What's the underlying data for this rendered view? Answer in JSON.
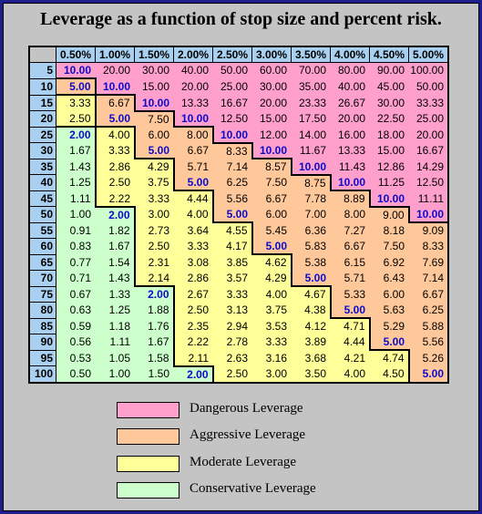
{
  "title": "Leverage as a function of stop size and percent risk.",
  "columns": [
    "0.50%",
    "1.00%",
    "1.50%",
    "2.00%",
    "2.50%",
    "3.00%",
    "3.50%",
    "4.00%",
    "4.50%",
    "5.00%"
  ],
  "rows": [
    {
      "stop": "5",
      "values": [
        "10.00",
        "20.00",
        "30.00",
        "40.00",
        "50.00",
        "60.00",
        "70.00",
        "80.00",
        "90.00",
        "100.00"
      ],
      "zones": [
        "d",
        "d",
        "d",
        "d",
        "d",
        "d",
        "d",
        "d",
        "d",
        "d"
      ]
    },
    {
      "stop": "10",
      "values": [
        "5.00",
        "10.00",
        "15.00",
        "20.00",
        "25.00",
        "30.00",
        "35.00",
        "40.00",
        "45.00",
        "50.00"
      ],
      "zones": [
        "a",
        "d",
        "d",
        "d",
        "d",
        "d",
        "d",
        "d",
        "d",
        "d"
      ]
    },
    {
      "stop": "15",
      "values": [
        "3.33",
        "6.67",
        "10.00",
        "13.33",
        "16.67",
        "20.00",
        "23.33",
        "26.67",
        "30.00",
        "33.33"
      ],
      "zones": [
        "m",
        "a",
        "d",
        "d",
        "d",
        "d",
        "d",
        "d",
        "d",
        "d"
      ]
    },
    {
      "stop": "20",
      "values": [
        "2.50",
        "5.00",
        "7.50",
        "10.00",
        "12.50",
        "15.00",
        "17.50",
        "20.00",
        "22.50",
        "25.00"
      ],
      "zones": [
        "m",
        "a",
        "a",
        "d",
        "d",
        "d",
        "d",
        "d",
        "d",
        "d"
      ]
    },
    {
      "stop": "25",
      "values": [
        "2.00",
        "4.00",
        "6.00",
        "8.00",
        "10.00",
        "12.00",
        "14.00",
        "16.00",
        "18.00",
        "20.00"
      ],
      "zones": [
        "c",
        "m",
        "a",
        "a",
        "d",
        "d",
        "d",
        "d",
        "d",
        "d"
      ]
    },
    {
      "stop": "30",
      "values": [
        "1.67",
        "3.33",
        "5.00",
        "6.67",
        "8.33",
        "10.00",
        "11.67",
        "13.33",
        "15.00",
        "16.67"
      ],
      "zones": [
        "c",
        "m",
        "a",
        "a",
        "a",
        "d",
        "d",
        "d",
        "d",
        "d"
      ]
    },
    {
      "stop": "35",
      "values": [
        "1.43",
        "2.86",
        "4.29",
        "5.71",
        "7.14",
        "8.57",
        "10.00",
        "11.43",
        "12.86",
        "14.29"
      ],
      "zones": [
        "c",
        "m",
        "m",
        "a",
        "a",
        "a",
        "d",
        "d",
        "d",
        "d"
      ]
    },
    {
      "stop": "40",
      "values": [
        "1.25",
        "2.50",
        "3.75",
        "5.00",
        "6.25",
        "7.50",
        "8.75",
        "10.00",
        "11.25",
        "12.50"
      ],
      "zones": [
        "c",
        "m",
        "m",
        "a",
        "a",
        "a",
        "a",
        "d",
        "d",
        "d"
      ]
    },
    {
      "stop": "45",
      "values": [
        "1.11",
        "2.22",
        "3.33",
        "4.44",
        "5.56",
        "6.67",
        "7.78",
        "8.89",
        "10.00",
        "11.11"
      ],
      "zones": [
        "c",
        "m",
        "m",
        "m",
        "a",
        "a",
        "a",
        "a",
        "d",
        "d"
      ]
    },
    {
      "stop": "50",
      "values": [
        "1.00",
        "2.00",
        "3.00",
        "4.00",
        "5.00",
        "6.00",
        "7.00",
        "8.00",
        "9.00",
        "10.00"
      ],
      "zones": [
        "c",
        "c",
        "m",
        "m",
        "a",
        "a",
        "a",
        "a",
        "a",
        "d"
      ]
    },
    {
      "stop": "55",
      "values": [
        "0.91",
        "1.82",
        "2.73",
        "3.64",
        "4.55",
        "5.45",
        "6.36",
        "7.27",
        "8.18",
        "9.09"
      ],
      "zones": [
        "c",
        "c",
        "m",
        "m",
        "m",
        "a",
        "a",
        "a",
        "a",
        "a"
      ]
    },
    {
      "stop": "60",
      "values": [
        "0.83",
        "1.67",
        "2.50",
        "3.33",
        "4.17",
        "5.00",
        "5.83",
        "6.67",
        "7.50",
        "8.33"
      ],
      "zones": [
        "c",
        "c",
        "m",
        "m",
        "m",
        "a",
        "a",
        "a",
        "a",
        "a"
      ]
    },
    {
      "stop": "65",
      "values": [
        "0.77",
        "1.54",
        "2.31",
        "3.08",
        "3.85",
        "4.62",
        "5.38",
        "6.15",
        "6.92",
        "7.69"
      ],
      "zones": [
        "c",
        "c",
        "m",
        "m",
        "m",
        "m",
        "a",
        "a",
        "a",
        "a"
      ]
    },
    {
      "stop": "70",
      "values": [
        "0.71",
        "1.43",
        "2.14",
        "2.86",
        "3.57",
        "4.29",
        "5.00",
        "5.71",
        "6.43",
        "7.14"
      ],
      "zones": [
        "c",
        "c",
        "m",
        "m",
        "m",
        "m",
        "a",
        "a",
        "a",
        "a"
      ]
    },
    {
      "stop": "75",
      "values": [
        "0.67",
        "1.33",
        "2.00",
        "2.67",
        "3.33",
        "4.00",
        "4.67",
        "5.33",
        "6.00",
        "6.67"
      ],
      "zones": [
        "c",
        "c",
        "c",
        "m",
        "m",
        "m",
        "m",
        "a",
        "a",
        "a"
      ]
    },
    {
      "stop": "80",
      "values": [
        "0.63",
        "1.25",
        "1.88",
        "2.50",
        "3.13",
        "3.75",
        "4.38",
        "5.00",
        "5.63",
        "6.25"
      ],
      "zones": [
        "c",
        "c",
        "c",
        "m",
        "m",
        "m",
        "m",
        "a",
        "a",
        "a"
      ]
    },
    {
      "stop": "85",
      "values": [
        "0.59",
        "1.18",
        "1.76",
        "2.35",
        "2.94",
        "3.53",
        "4.12",
        "4.71",
        "5.29",
        "5.88"
      ],
      "zones": [
        "c",
        "c",
        "c",
        "m",
        "m",
        "m",
        "m",
        "m",
        "a",
        "a"
      ]
    },
    {
      "stop": "90",
      "values": [
        "0.56",
        "1.11",
        "1.67",
        "2.22",
        "2.78",
        "3.33",
        "3.89",
        "4.44",
        "5.00",
        "5.56"
      ],
      "zones": [
        "c",
        "c",
        "c",
        "m",
        "m",
        "m",
        "m",
        "m",
        "a",
        "a"
      ]
    },
    {
      "stop": "95",
      "values": [
        "0.53",
        "1.05",
        "1.58",
        "2.11",
        "2.63",
        "3.16",
        "3.68",
        "4.21",
        "4.74",
        "5.26"
      ],
      "zones": [
        "c",
        "c",
        "c",
        "m",
        "m",
        "m",
        "m",
        "m",
        "m",
        "a"
      ]
    },
    {
      "stop": "100",
      "values": [
        "0.50",
        "1.00",
        "1.50",
        "2.00",
        "2.50",
        "3.00",
        "3.50",
        "4.00",
        "4.50",
        "5.00"
      ],
      "zones": [
        "c",
        "c",
        "c",
        "c",
        "m",
        "m",
        "m",
        "m",
        "m",
        "a"
      ]
    }
  ],
  "emphasis_values": [
    "10.00",
    "5.00",
    "2.00"
  ],
  "legend": [
    {
      "label": "Dangerous Leverage",
      "color": "#ffa0cc"
    },
    {
      "label": "Aggressive Leverage",
      "color": "#ffc89a"
    },
    {
      "label": "Moderate Leverage",
      "color": "#ffff9a"
    },
    {
      "label": "Conservative Leverage",
      "color": "#ccffcc"
    }
  ],
  "colors": {
    "frame_border": "#1e1e8c",
    "background": "#c4c4c4",
    "header": "#a9d0f0",
    "emphasis_text": "#0a0acd"
  }
}
